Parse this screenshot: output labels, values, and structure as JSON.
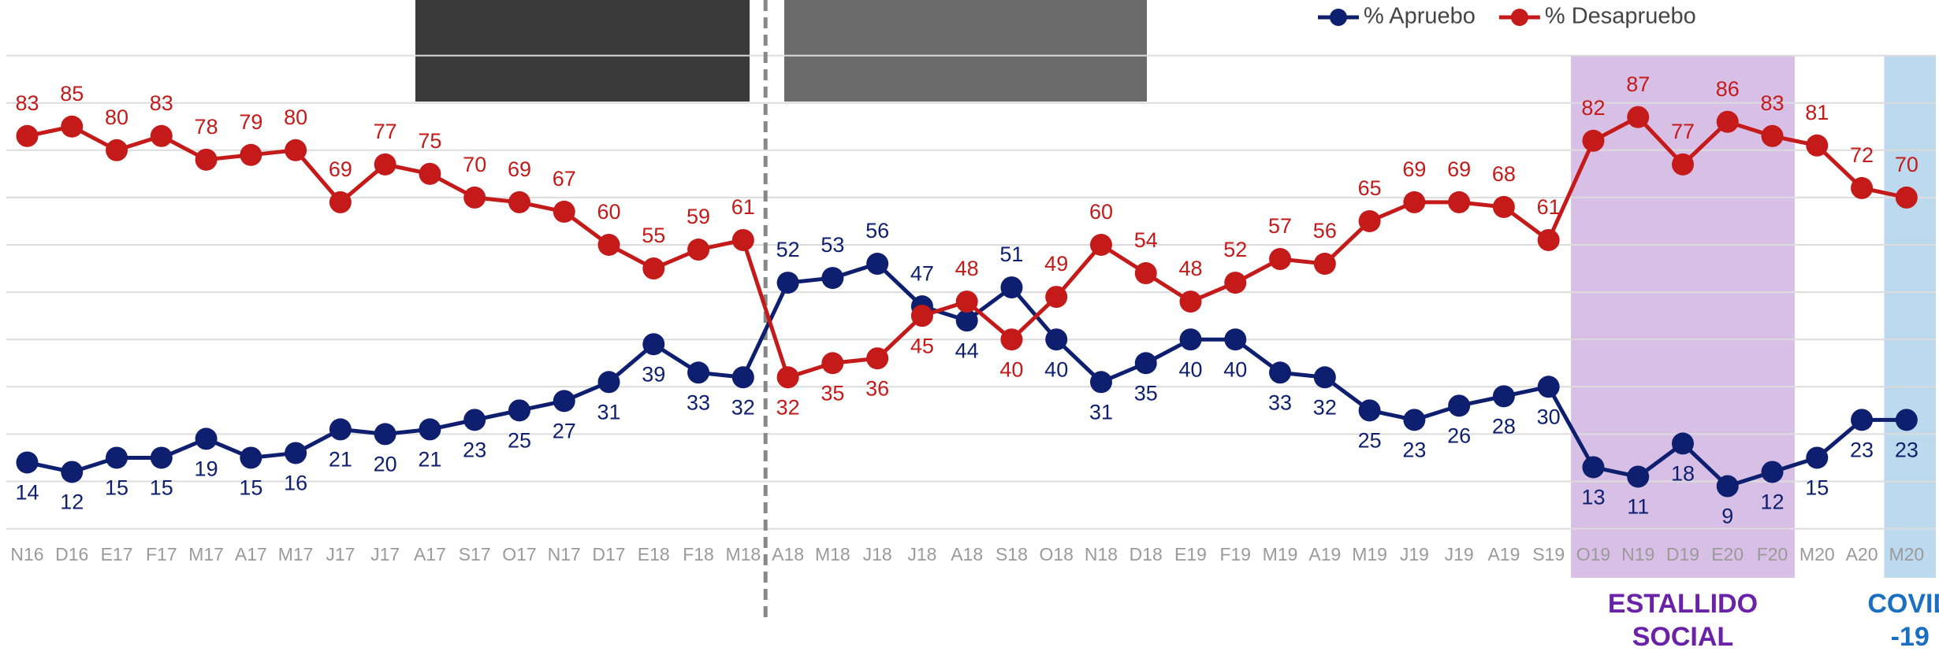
{
  "chart_data": {
    "type": "line",
    "categories": [
      "N16",
      "D16",
      "E17",
      "F17",
      "M17",
      "A17",
      "M17",
      "J17",
      "J17",
      "A17",
      "S17",
      "O17",
      "N17",
      "D17",
      "E18",
      "F18",
      "M18",
      "A18",
      "M18",
      "J18",
      "J18",
      "A18",
      "S18",
      "O18",
      "N18",
      "D18",
      "E19",
      "F19",
      "M19",
      "A19",
      "M19",
      "J19",
      "J19",
      "A19",
      "S19",
      "O19",
      "N19",
      "D19",
      "E20",
      "F20",
      "M20",
      "A20",
      "M20"
    ],
    "series": [
      {
        "name": "% Apruebo",
        "color": "#0d1f6e",
        "values": [
          14,
          12,
          15,
          15,
          19,
          15,
          16,
          21,
          20,
          21,
          23,
          25,
          27,
          31,
          39,
          33,
          32,
          52,
          53,
          56,
          47,
          44,
          51,
          40,
          31,
          35,
          40,
          40,
          33,
          32,
          25,
          23,
          26,
          28,
          30,
          13,
          11,
          18,
          9,
          12,
          15,
          23,
          23
        ]
      },
      {
        "name": "% Desapruebo",
        "color": "#c41a1a",
        "values": [
          83,
          85,
          80,
          83,
          78,
          79,
          80,
          69,
          77,
          75,
          70,
          69,
          67,
          60,
          55,
          59,
          61,
          32,
          35,
          36,
          45,
          48,
          40,
          49,
          60,
          54,
          48,
          52,
          57,
          56,
          65,
          69,
          69,
          68,
          61,
          82,
          87,
          77,
          86,
          83,
          81,
          72,
          70
        ]
      }
    ],
    "ylim": [
      0,
      100
    ],
    "yticks": [
      0,
      10,
      20,
      30,
      40,
      50,
      60,
      70,
      80,
      90,
      100
    ],
    "grid": true,
    "periods": [
      {
        "label_lines": [
          "ESTALLIDO",
          "SOCIAL"
        ],
        "start": "O19",
        "end": "F20",
        "color": "#d7bfe6",
        "text_color": "#6a22a8"
      },
      {
        "label_lines": [
          "COVID",
          "-19"
        ],
        "start": "M20",
        "end": "M20",
        "color": "#bcd9ee",
        "text_color": "#1a6fc0"
      }
    ]
  }
}
